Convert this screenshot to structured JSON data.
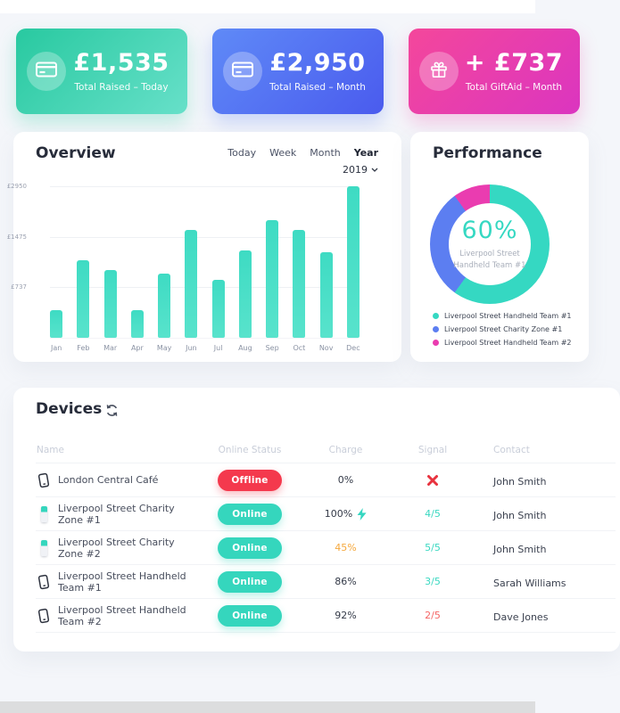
{
  "page": {
    "top_strip_color": "#ffffff",
    "background": "#f4f6fa",
    "bottom_bar_color": "#dcddde"
  },
  "stat_cards": [
    {
      "amount": "£1,535",
      "label": "Total Raised – Today",
      "icon": "credit-card",
      "gradient": [
        "#28c9a0",
        "#67e0c9"
      ]
    },
    {
      "amount": "£2,950",
      "label": "Total Raised – Month",
      "icon": "credit-card",
      "gradient": [
        "#5f8af7",
        "#4a5bee"
      ]
    },
    {
      "amount": "+ £737",
      "label": "Total GiftAid – Month",
      "icon": "gift",
      "gradient": [
        "#f4479b",
        "#db35c0"
      ]
    }
  ],
  "overview": {
    "title": "Overview",
    "tabs": [
      {
        "label": "Today",
        "active": false
      },
      {
        "label": "Week",
        "active": false
      },
      {
        "label": "Month",
        "active": false
      },
      {
        "label": "Year",
        "active": true
      }
    ],
    "year_selector": "2019"
  },
  "chart_data": [
    {
      "type": "bar",
      "title": "Overview",
      "categories": [
        "Jan",
        "Feb",
        "Mar",
        "Apr",
        "May",
        "Jun",
        "Jul",
        "Aug",
        "Sep",
        "Oct",
        "Nov",
        "Dec"
      ],
      "values": [
        540,
        1070,
        930,
        540,
        890,
        1620,
        820,
        1230,
        1850,
        1620,
        1190,
        2950
      ],
      "xlabel": "",
      "ylabel": "£",
      "y_scale": "log2",
      "ylim": [
        368.75,
        2950
      ],
      "y_ticks": [
        {
          "label": "£2950",
          "pos_pct": 0
        },
        {
          "label": "£1475",
          "pos_pct": 33.33
        },
        {
          "label": "£737",
          "pos_pct": 66.67
        }
      ],
      "grid": true,
      "bar_color_top": "#3edbc3",
      "bar_color_bottom": "#58e3cc"
    },
    {
      "type": "pie",
      "variant": "donut",
      "title": "Performance",
      "labels": [
        "Liverpool Street Handheld Team #1",
        "Liverpool Street Charity Zone #1",
        "Liverpool Street Handheld Team #2"
      ],
      "values": [
        60,
        30,
        10
      ],
      "colors": [
        "#35d8c2",
        "#5c7ef1",
        "#ea3cb0"
      ],
      "center_value": "60%",
      "center_label_line1": "Liverpool Street",
      "center_label_line2": "Handheld Team #1",
      "legend_position": "bottom"
    }
  ],
  "performance": {
    "title": "Performance"
  },
  "devices": {
    "title": "Devices",
    "columns": [
      "Name",
      "Online Status",
      "Charge",
      "Signal",
      "Contact"
    ],
    "status_colors": {
      "online": "#35d6bd",
      "offline": "#f4394d"
    },
    "bolt_color": "#35d6c0",
    "rows": [
      {
        "icon": "phone",
        "name": "London Central Café",
        "status": "Offline",
        "status_color": "#f4394d",
        "charge": "0%",
        "charge_color": "#343a48",
        "charge_bolt": false,
        "signal_x": true,
        "signal": "",
        "signal_color": "#e8333f",
        "contact": "John Smith"
      },
      {
        "icon": "kiosk",
        "name": "Liverpool Street Charity Zone #1",
        "status": "Online",
        "status_color": "#35d6bd",
        "charge": "100%",
        "charge_color": "#343a48",
        "charge_bolt": true,
        "signal_x": false,
        "signal": "4/5",
        "signal_color": "#3bd8c1",
        "contact": "John Smith"
      },
      {
        "icon": "kiosk",
        "name": "Liverpool Street Charity Zone #2",
        "status": "Online",
        "status_color": "#35d6bd",
        "charge": "45%",
        "charge_color": "#f5a83d",
        "charge_bolt": false,
        "signal_x": false,
        "signal": "5/5",
        "signal_color": "#3bd8c1",
        "contact": "John Smith"
      },
      {
        "icon": "phone",
        "name": "Liverpool Street Handheld Team #1",
        "status": "Online",
        "status_color": "#35d6bd",
        "charge": "86%",
        "charge_color": "#343a48",
        "charge_bolt": false,
        "signal_x": false,
        "signal": "3/5",
        "signal_color": "#3bd8c1",
        "contact": "Sarah Williams"
      },
      {
        "icon": "phone",
        "name": "Liverpool Street Handheld Team #2",
        "status": "Online",
        "status_color": "#35d6bd",
        "charge": "92%",
        "charge_color": "#343a48",
        "charge_bolt": false,
        "signal_x": false,
        "signal": "2/5",
        "signal_color": "#f56565",
        "contact": "Dave Jones"
      }
    ]
  }
}
